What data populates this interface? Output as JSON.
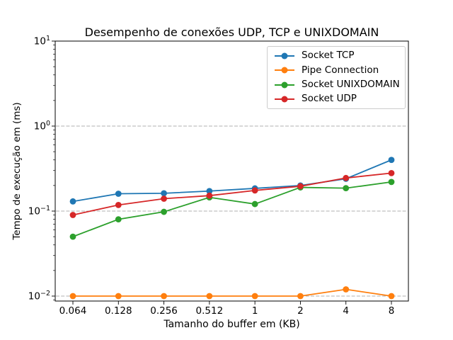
{
  "chart_data": {
    "type": "line",
    "title": "Desempenho de conexões UDP, TCP e UNIXDOMAIN",
    "xlabel": "Tamanho do buffer em (KB)",
    "ylabel": "Tempo de execução em (ms)",
    "x_categories": [
      "0.064",
      "0.128",
      "0.256",
      "0.512",
      "1",
      "2",
      "4",
      "8"
    ],
    "y_scale": "log",
    "ylim": [
      0.0087,
      10
    ],
    "ytick_labels": [
      "10^1",
      "10^0",
      "10^-1",
      "10^-2"
    ],
    "ytick_exponents": [
      1,
      0,
      -1,
      -2
    ],
    "grid": {
      "axis": "y",
      "style": "dashed",
      "color": "#b0b0b0"
    },
    "legend_position": "upper-right",
    "series": [
      {
        "name": "Socket TCP",
        "color": "#1f77b4",
        "values": [
          0.13,
          0.16,
          0.162,
          0.172,
          0.185,
          0.2,
          0.24,
          0.4
        ]
      },
      {
        "name": "Pipe Connection",
        "color": "#ff7f0e",
        "values": [
          0.01,
          0.01,
          0.01,
          0.01,
          0.01,
          0.01,
          0.012,
          0.01
        ]
      },
      {
        "name": "Socket UNIXDOMAIN",
        "color": "#2ca02c",
        "values": [
          0.05,
          0.08,
          0.098,
          0.145,
          0.121,
          0.19,
          0.186,
          0.22
        ]
      },
      {
        "name": "Socket UDP",
        "color": "#d62728",
        "values": [
          0.09,
          0.118,
          0.14,
          0.152,
          0.175,
          0.196,
          0.245,
          0.28
        ]
      }
    ]
  }
}
